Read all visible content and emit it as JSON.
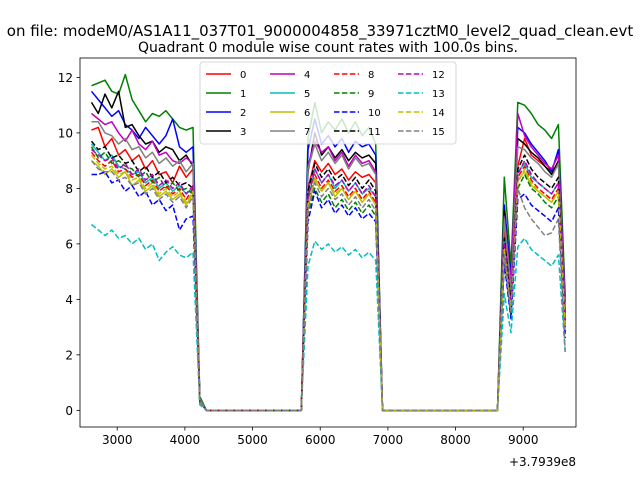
{
  "figure": {
    "suptitle": "on file: modeM0/AS1A11_037T01_9000004858_33971cztM0_level2_quad_clean.evt",
    "title": "Quadrant 0 module wise count rates with 100.0s bins.",
    "x_offset_label": "+3.7939e8"
  },
  "chart_data": {
    "type": "line",
    "title": "Quadrant 0 module wise count rates with 100.0s bins.",
    "xlabel": "",
    "ylabel": "",
    "xlim": [
      2450,
      9780
    ],
    "ylim": [
      -0.6,
      12.7
    ],
    "x_offset": 379390000,
    "xticks": [
      3000,
      4000,
      5000,
      6000,
      7000,
      8000,
      9000
    ],
    "yticks": [
      0,
      2,
      4,
      6,
      8,
      10,
      12
    ],
    "grid": false,
    "legend_position": "top-center",
    "x": [
      2620,
      2720,
      2820,
      2920,
      3020,
      3120,
      3220,
      3320,
      3420,
      3520,
      3620,
      3720,
      3820,
      3920,
      4020,
      4120,
      4220,
      4320,
      4420,
      5720,
      5820,
      5920,
      6020,
      6120,
      6220,
      6320,
      6420,
      6520,
      6620,
      6720,
      6820,
      6920,
      7020,
      8620,
      8720,
      8820,
      8920,
      9020,
      9120,
      9220,
      9320,
      9420,
      9520,
      9620
    ],
    "series": [
      {
        "name": "0",
        "color": "#ff0000",
        "dash": "solid",
        "values": [
          10.1,
          10.2,
          9.5,
          9.8,
          9.2,
          9.4,
          9.0,
          9.2,
          8.7,
          9.0,
          8.5,
          8.6,
          8.2,
          8.8,
          8.4,
          8.7,
          0.4,
          0.0,
          0.0,
          0.0,
          8.0,
          9.0,
          8.6,
          8.9,
          8.5,
          8.7,
          8.3,
          8.6,
          8.4,
          8.5,
          8.2,
          0.0,
          0.0,
          0.0,
          6.5,
          4.2,
          8.8,
          9.8,
          9.2,
          9.0,
          8.8,
          8.6,
          8.9,
          3.2
        ]
      },
      {
        "name": "1",
        "color": "#008000",
        "dash": "solid",
        "values": [
          11.7,
          11.8,
          11.9,
          11.5,
          11.4,
          12.1,
          11.2,
          10.8,
          10.4,
          10.7,
          10.6,
          10.8,
          10.5,
          10.2,
          10.1,
          10.2,
          0.5,
          0.0,
          0.0,
          0.0,
          9.8,
          11.1,
          10.0,
          10.4,
          10.1,
          10.5,
          10.0,
          10.4,
          9.9,
          10.2,
          9.6,
          0.0,
          0.0,
          0.0,
          8.4,
          5.2,
          11.1,
          11.0,
          10.7,
          10.3,
          10.1,
          9.8,
          10.3,
          4.1
        ]
      },
      {
        "name": "2",
        "color": "#0000ff",
        "dash": "solid",
        "values": [
          11.5,
          11.2,
          10.9,
          10.6,
          10.8,
          10.3,
          10.1,
          9.8,
          10.2,
          9.9,
          9.6,
          9.9,
          10.5,
          9.5,
          9.3,
          9.5,
          0.4,
          0.0,
          0.0,
          0.0,
          9.4,
          10.5,
          9.6,
          9.9,
          9.5,
          9.8,
          9.3,
          9.7,
          9.5,
          9.6,
          9.2,
          0.0,
          0.0,
          0.0,
          7.4,
          4.8,
          10.2,
          10.0,
          9.6,
          9.3,
          9.0,
          8.6,
          9.4,
          3.9
        ]
      },
      {
        "name": "3",
        "color": "#000000",
        "dash": "solid",
        "values": [
          11.1,
          10.7,
          11.4,
          10.9,
          11.5,
          10.2,
          10.3,
          9.9,
          9.6,
          9.7,
          9.3,
          9.5,
          9.4,
          9.0,
          9.2,
          8.8,
          0.4,
          0.0,
          0.0,
          0.0,
          8.6,
          10.0,
          9.2,
          9.5,
          9.1,
          9.4,
          9.0,
          9.3,
          9.1,
          9.2,
          8.9,
          0.0,
          0.0,
          0.0,
          7.2,
          4.4,
          9.8,
          9.6,
          9.3,
          9.1,
          8.8,
          8.5,
          9.0,
          3.5
        ]
      },
      {
        "name": "4",
        "color": "#bf00bf",
        "dash": "solid",
        "values": [
          10.7,
          10.5,
          10.3,
          10.4,
          10.0,
          9.7,
          10.1,
          9.6,
          9.4,
          9.7,
          9.2,
          9.3,
          9.0,
          8.9,
          9.1,
          8.9,
          0.4,
          0.0,
          0.0,
          0.0,
          8.8,
          9.7,
          9.3,
          9.5,
          9.0,
          9.3,
          8.8,
          9.2,
          8.9,
          9.0,
          8.6,
          0.0,
          0.0,
          0.0,
          7.0,
          4.6,
          10.7,
          9.9,
          9.5,
          9.2,
          8.9,
          8.7,
          9.2,
          3.7
        ]
      },
      {
        "name": "5",
        "color": "#00bfbf",
        "dash": "solid",
        "values": [
          9.6,
          9.3,
          9.0,
          9.2,
          8.8,
          8.7,
          8.5,
          8.6,
          8.2,
          8.4,
          8.0,
          8.2,
          7.9,
          8.1,
          7.8,
          8.0,
          0.3,
          0.0,
          0.0,
          0.0,
          7.6,
          8.7,
          8.2,
          8.5,
          8.0,
          8.3,
          7.9,
          8.2,
          7.8,
          8.0,
          7.7,
          0.0,
          0.0,
          0.0,
          6.1,
          3.8,
          8.6,
          8.9,
          8.4,
          8.2,
          8.0,
          7.8,
          8.2,
          3.0
        ]
      },
      {
        "name": "6",
        "color": "#bfbf00",
        "dash": "solid",
        "values": [
          9.0,
          8.8,
          8.5,
          8.7,
          8.4,
          8.6,
          8.1,
          8.3,
          7.9,
          8.1,
          7.7,
          7.9,
          7.6,
          7.8,
          7.4,
          7.8,
          0.3,
          0.0,
          0.0,
          0.0,
          7.3,
          8.3,
          7.9,
          8.2,
          7.7,
          8.0,
          7.6,
          7.9,
          7.5,
          7.8,
          7.4,
          0.0,
          0.0,
          0.0,
          5.8,
          3.6,
          8.3,
          8.6,
          8.1,
          7.9,
          7.7,
          7.5,
          7.9,
          2.9
        ]
      },
      {
        "name": "7",
        "color": "#808080",
        "dash": "solid",
        "values": [
          10.4,
          10.4,
          10.0,
          9.9,
          9.6,
          9.8,
          9.4,
          9.5,
          9.1,
          9.3,
          8.9,
          9.1,
          8.8,
          9.0,
          8.6,
          8.9,
          0.4,
          0.0,
          0.0,
          0.0,
          8.7,
          9.6,
          9.0,
          9.3,
          8.9,
          9.2,
          8.7,
          9.1,
          8.8,
          8.9,
          8.5,
          0.0,
          0.0,
          0.0,
          6.9,
          4.3,
          9.5,
          9.4,
          9.1,
          8.9,
          8.6,
          8.4,
          8.9,
          3.4
        ]
      },
      {
        "name": "8",
        "color": "#ff0000",
        "dash": "dashed",
        "values": [
          9.3,
          9.0,
          8.8,
          9.0,
          8.6,
          8.7,
          8.4,
          8.5,
          8.1,
          8.3,
          7.9,
          8.1,
          7.8,
          8.0,
          7.6,
          8.0,
          0.3,
          0.0,
          0.0,
          0.0,
          7.5,
          8.5,
          8.0,
          8.3,
          7.9,
          8.1,
          7.7,
          8.0,
          7.6,
          7.9,
          7.5,
          0.0,
          0.0,
          0.0,
          5.9,
          3.7,
          8.4,
          8.8,
          8.3,
          8.0,
          7.8,
          7.6,
          8.0,
          3.0
        ]
      },
      {
        "name": "9",
        "color": "#008000",
        "dash": "dashed",
        "values": [
          9.5,
          9.1,
          9.3,
          8.9,
          9.0,
          8.8,
          8.7,
          8.4,
          8.6,
          8.2,
          8.4,
          8.0,
          8.2,
          7.9,
          8.0,
          7.8,
          0.3,
          0.0,
          0.0,
          0.0,
          7.1,
          8.0,
          7.5,
          7.8,
          7.3,
          7.6,
          7.2,
          7.5,
          7.1,
          7.4,
          7.0,
          0.0,
          0.0,
          0.0,
          5.5,
          3.4,
          8.0,
          8.5,
          8.0,
          7.8,
          7.5,
          7.3,
          7.7,
          2.8
        ]
      },
      {
        "name": "10",
        "color": "#0000ff",
        "dash": "dashed",
        "values": [
          8.5,
          8.5,
          8.6,
          8.2,
          8.3,
          7.9,
          8.1,
          7.7,
          7.9,
          7.4,
          7.6,
          7.2,
          7.4,
          6.5,
          6.9,
          7.0,
          0.3,
          0.0,
          0.0,
          0.0,
          6.8,
          7.9,
          7.3,
          7.6,
          7.1,
          7.4,
          7.0,
          7.3,
          6.9,
          7.1,
          6.8,
          0.0,
          0.0,
          0.0,
          5.3,
          3.3,
          7.6,
          7.8,
          7.4,
          7.2,
          7.0,
          6.8,
          7.3,
          2.6
        ]
      },
      {
        "name": "11",
        "color": "#000000",
        "dash": "dashed",
        "values": [
          9.7,
          9.4,
          9.5,
          9.1,
          9.2,
          8.9,
          9.0,
          8.6,
          8.8,
          8.4,
          8.6,
          8.2,
          8.4,
          8.1,
          8.2,
          8.0,
          0.3,
          0.0,
          0.0,
          0.0,
          7.9,
          8.9,
          8.4,
          8.7,
          8.3,
          8.5,
          8.1,
          8.4,
          8.0,
          8.3,
          7.9,
          0.0,
          0.0,
          0.0,
          6.2,
          3.9,
          8.7,
          9.2,
          8.7,
          8.4,
          8.2,
          8.0,
          8.4,
          3.1
        ]
      },
      {
        "name": "12",
        "color": "#bf00bf",
        "dash": "dashed",
        "values": [
          9.4,
          9.2,
          9.0,
          9.1,
          8.7,
          8.9,
          8.5,
          8.7,
          8.3,
          8.5,
          8.1,
          8.3,
          8.0,
          8.2,
          7.8,
          8.1,
          0.3,
          0.0,
          0.0,
          0.0,
          7.7,
          8.7,
          8.2,
          8.5,
          8.1,
          8.3,
          7.9,
          8.2,
          7.8,
          8.1,
          7.7,
          0.0,
          0.0,
          0.0,
          6.0,
          3.8,
          8.5,
          9.0,
          8.5,
          8.2,
          8.0,
          7.8,
          8.2,
          3.0
        ]
      },
      {
        "name": "13",
        "color": "#00bfbf",
        "dash": "dashed",
        "values": [
          6.7,
          6.5,
          6.3,
          6.5,
          6.2,
          6.3,
          6.0,
          6.2,
          5.8,
          6.0,
          5.4,
          5.7,
          5.9,
          5.6,
          5.5,
          5.7,
          0.2,
          0.0,
          0.0,
          0.0,
          5.2,
          6.1,
          5.8,
          6.0,
          5.7,
          5.9,
          5.6,
          5.8,
          5.5,
          5.7,
          5.4,
          0.0,
          0.0,
          0.0,
          4.2,
          2.8,
          5.9,
          6.2,
          5.8,
          5.6,
          5.4,
          5.2,
          5.6,
          2.1
        ]
      },
      {
        "name": "14",
        "color": "#bfbf00",
        "dash": "dashed",
        "values": [
          9.2,
          8.9,
          8.7,
          8.8,
          8.5,
          8.6,
          8.3,
          8.4,
          8.0,
          8.2,
          7.8,
          8.0,
          7.7,
          7.9,
          7.5,
          7.9,
          0.3,
          0.0,
          0.0,
          0.0,
          7.4,
          8.4,
          7.9,
          8.2,
          7.8,
          8.0,
          7.6,
          7.9,
          7.5,
          7.8,
          7.4,
          0.0,
          0.0,
          0.0,
          5.8,
          3.6,
          8.2,
          8.7,
          8.2,
          7.9,
          7.7,
          7.5,
          7.9,
          2.9
        ]
      },
      {
        "name": "15",
        "color": "#808080",
        "dash": "dashed",
        "values": [
          9.0,
          8.7,
          8.6,
          8.6,
          8.3,
          8.4,
          8.1,
          8.2,
          7.8,
          8.0,
          7.6,
          7.8,
          7.5,
          7.7,
          7.3,
          7.7,
          0.3,
          0.0,
          0.0,
          0.0,
          7.2,
          8.2,
          7.7,
          8.0,
          7.6,
          7.8,
          7.4,
          7.7,
          7.3,
          7.6,
          7.2,
          0.0,
          0.0,
          0.0,
          5.6,
          3.5,
          8.0,
          7.3,
          6.9,
          6.6,
          6.3,
          6.4,
          6.9,
          2.1
        ]
      }
    ]
  }
}
